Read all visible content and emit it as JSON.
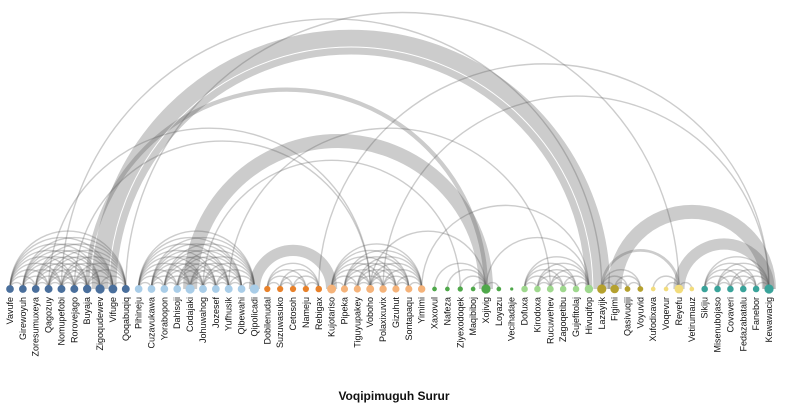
{
  "title": "Voqipimuguh Surur",
  "colors": {
    "link": "#555555",
    "groups": [
      "#4a6f9c",
      "#a9cde8",
      "#e8812a",
      "#f5b37a",
      "#4fa84a",
      "#9fd88e",
      "#b5a12e",
      "#f2dc7c",
      "#3aa39a"
    ]
  },
  "nodes": [
    {
      "label": "Vavufe",
      "group": 0
    },
    {
      "label": "Girewoyuh",
      "group": 0
    },
    {
      "label": "Zoresumuxeya",
      "group": 0
    },
    {
      "label": "Qagozuy",
      "group": 0
    },
    {
      "label": "Nomupefobi",
      "group": 0
    },
    {
      "label": "Rorovejago",
      "group": 0
    },
    {
      "label": "Buyaja",
      "group": 0
    },
    {
      "label": "Zigoqudewev",
      "group": 0
    },
    {
      "label": "Vifuge",
      "group": 0
    },
    {
      "label": "Qoqabuqiq",
      "group": 0
    },
    {
      "label": "Pihineju",
      "group": 1
    },
    {
      "label": "Cuzavukawa",
      "group": 1
    },
    {
      "label": "Yorabopon",
      "group": 1
    },
    {
      "label": "Dahisoji",
      "group": 1
    },
    {
      "label": "Codajaki",
      "group": 1
    },
    {
      "label": "Johuwahog",
      "group": 1
    },
    {
      "label": "Jozesef",
      "group": 1
    },
    {
      "label": "Yufhusik",
      "group": 1
    },
    {
      "label": "Qibewahi",
      "group": 1
    },
    {
      "label": "Qipolicadi",
      "group": 1
    },
    {
      "label": "Dobilenudal",
      "group": 2
    },
    {
      "label": "Suzuwasuko",
      "group": 2
    },
    {
      "label": "Cetosoh",
      "group": 2
    },
    {
      "label": "Nameju",
      "group": 2
    },
    {
      "label": "Rebigax",
      "group": 2
    },
    {
      "label": "Kujotariso",
      "group": 3
    },
    {
      "label": "Pipeka",
      "group": 3
    },
    {
      "label": "Tiguyupakey",
      "group": 3
    },
    {
      "label": "Voboho",
      "group": 3
    },
    {
      "label": "Polaxixuvix",
      "group": 3
    },
    {
      "label": "Gizuhut",
      "group": 3
    },
    {
      "label": "Sontapaqu",
      "group": 3
    },
    {
      "label": "Yimimi",
      "group": 3
    },
    {
      "label": "Xaxovul",
      "group": 4
    },
    {
      "label": "Nafeza",
      "group": 4
    },
    {
      "label": "Ziyexodoqek",
      "group": 4
    },
    {
      "label": "Maqibiboj",
      "group": 4
    },
    {
      "label": "Xojivig",
      "group": 4
    },
    {
      "label": "Loyazu",
      "group": 4
    },
    {
      "label": "Vecihadaje",
      "group": 4
    },
    {
      "label": "Dofuxa",
      "group": 5
    },
    {
      "label": "Kirodoxa",
      "group": 5
    },
    {
      "label": "Rucuwehev",
      "group": 5
    },
    {
      "label": "Zagoqetibu",
      "group": 5
    },
    {
      "label": "Gujefitolaj",
      "group": 5
    },
    {
      "label": "Hivuqifop",
      "group": 5
    },
    {
      "label": "Lazayijk",
      "group": 6
    },
    {
      "label": "Figimi",
      "group": 6
    },
    {
      "label": "Qasivuqiji",
      "group": 6
    },
    {
      "label": "Voyuvid",
      "group": 6
    },
    {
      "label": "Xufodixava",
      "group": 7
    },
    {
      "label": "Voqevur",
      "group": 7
    },
    {
      "label": "Reyefu",
      "group": 7
    },
    {
      "label": "Vetirumauz",
      "group": 7
    },
    {
      "label": "Sikiju",
      "group": 8
    },
    {
      "label": "Misenubojaso",
      "group": 8
    },
    {
      "label": "Covaveri",
      "group": 8
    },
    {
      "label": "Fedazabatalu",
      "group": 8
    },
    {
      "label": "Fanebor",
      "group": 8
    },
    {
      "label": "Kewawacig",
      "group": 8
    }
  ],
  "links": [
    [
      0,
      1,
      1
    ],
    [
      0,
      2,
      1
    ],
    [
      0,
      3,
      1
    ],
    [
      0,
      4,
      1
    ],
    [
      0,
      5,
      1
    ],
    [
      0,
      6,
      1
    ],
    [
      0,
      7,
      1
    ],
    [
      0,
      8,
      1
    ],
    [
      0,
      9,
      1
    ],
    [
      1,
      2,
      1
    ],
    [
      1,
      3,
      1
    ],
    [
      1,
      4,
      1
    ],
    [
      1,
      5,
      1
    ],
    [
      1,
      6,
      1
    ],
    [
      1,
      7,
      1
    ],
    [
      1,
      8,
      1
    ],
    [
      1,
      9,
      1
    ],
    [
      2,
      3,
      1
    ],
    [
      2,
      4,
      1
    ],
    [
      2,
      5,
      1
    ],
    [
      2,
      6,
      1
    ],
    [
      2,
      7,
      1
    ],
    [
      2,
      8,
      1
    ],
    [
      2,
      9,
      1
    ],
    [
      3,
      4,
      1
    ],
    [
      3,
      5,
      1
    ],
    [
      3,
      6,
      1
    ],
    [
      3,
      7,
      1
    ],
    [
      3,
      8,
      1
    ],
    [
      3,
      9,
      1
    ],
    [
      4,
      5,
      1
    ],
    [
      4,
      6,
      1
    ],
    [
      4,
      7,
      1
    ],
    [
      4,
      8,
      1
    ],
    [
      4,
      9,
      1
    ],
    [
      5,
      6,
      1
    ],
    [
      5,
      7,
      1
    ],
    [
      5,
      8,
      1
    ],
    [
      5,
      9,
      1
    ],
    [
      6,
      7,
      1
    ],
    [
      6,
      8,
      1
    ],
    [
      6,
      9,
      1
    ],
    [
      7,
      8,
      1
    ],
    [
      7,
      9,
      1
    ],
    [
      8,
      9,
      1
    ],
    [
      10,
      11,
      1
    ],
    [
      10,
      12,
      1
    ],
    [
      10,
      13,
      1
    ],
    [
      10,
      14,
      1
    ],
    [
      10,
      15,
      1
    ],
    [
      10,
      16,
      1
    ],
    [
      10,
      17,
      1
    ],
    [
      10,
      18,
      1
    ],
    [
      10,
      19,
      1
    ],
    [
      11,
      12,
      1
    ],
    [
      11,
      13,
      1
    ],
    [
      11,
      14,
      1
    ],
    [
      11,
      15,
      1
    ],
    [
      11,
      16,
      1
    ],
    [
      11,
      17,
      1
    ],
    [
      11,
      18,
      1
    ],
    [
      11,
      19,
      1
    ],
    [
      12,
      13,
      1
    ],
    [
      12,
      14,
      1
    ],
    [
      12,
      15,
      1
    ],
    [
      12,
      16,
      1
    ],
    [
      12,
      17,
      1
    ],
    [
      12,
      18,
      1
    ],
    [
      12,
      19,
      1
    ],
    [
      13,
      14,
      1
    ],
    [
      13,
      15,
      1
    ],
    [
      13,
      16,
      1
    ],
    [
      13,
      17,
      1
    ],
    [
      13,
      18,
      1
    ],
    [
      13,
      19,
      1
    ],
    [
      14,
      15,
      1
    ],
    [
      14,
      16,
      1
    ],
    [
      14,
      17,
      1
    ],
    [
      14,
      18,
      1
    ],
    [
      14,
      19,
      1
    ],
    [
      15,
      16,
      1
    ],
    [
      15,
      17,
      1
    ],
    [
      15,
      18,
      1
    ],
    [
      15,
      19,
      1
    ],
    [
      16,
      17,
      1
    ],
    [
      16,
      18,
      1
    ],
    [
      16,
      19,
      1
    ],
    [
      17,
      18,
      1
    ],
    [
      17,
      19,
      1
    ],
    [
      18,
      19,
      1
    ],
    [
      20,
      21,
      1
    ],
    [
      20,
      22,
      1
    ],
    [
      20,
      23,
      1
    ],
    [
      20,
      24,
      1
    ],
    [
      21,
      22,
      1
    ],
    [
      21,
      23,
      1
    ],
    [
      21,
      24,
      1
    ],
    [
      22,
      23,
      1
    ],
    [
      22,
      24,
      1
    ],
    [
      23,
      24,
      1
    ],
    [
      19,
      25,
      8
    ],
    [
      25,
      26,
      1
    ],
    [
      25,
      27,
      1
    ],
    [
      25,
      28,
      1
    ],
    [
      25,
      29,
      1
    ],
    [
      25,
      30,
      1
    ],
    [
      25,
      31,
      1
    ],
    [
      25,
      32,
      1
    ],
    [
      26,
      27,
      1
    ],
    [
      26,
      28,
      1
    ],
    [
      26,
      29,
      1
    ],
    [
      26,
      30,
      1
    ],
    [
      26,
      31,
      1
    ],
    [
      26,
      32,
      1
    ],
    [
      27,
      28,
      1
    ],
    [
      27,
      29,
      1
    ],
    [
      27,
      30,
      1
    ],
    [
      27,
      31,
      1
    ],
    [
      27,
      32,
      1
    ],
    [
      28,
      29,
      1
    ],
    [
      28,
      30,
      1
    ],
    [
      28,
      31,
      1
    ],
    [
      28,
      32,
      1
    ],
    [
      29,
      30,
      1
    ],
    [
      29,
      31,
      1
    ],
    [
      29,
      32,
      1
    ],
    [
      30,
      31,
      1
    ],
    [
      30,
      32,
      1
    ],
    [
      31,
      32,
      1
    ],
    [
      33,
      37,
      1
    ],
    [
      34,
      37,
      1
    ],
    [
      35,
      37,
      1
    ],
    [
      36,
      37,
      1
    ],
    [
      37,
      38,
      1
    ],
    [
      40,
      41,
      1
    ],
    [
      40,
      42,
      1
    ],
    [
      40,
      43,
      1
    ],
    [
      40,
      44,
      1
    ],
    [
      40,
      45,
      1
    ],
    [
      41,
      42,
      1
    ],
    [
      41,
      43,
      1
    ],
    [
      41,
      44,
      1
    ],
    [
      41,
      45,
      1
    ],
    [
      42,
      43,
      1
    ],
    [
      42,
      44,
      1
    ],
    [
      42,
      45,
      1
    ],
    [
      43,
      44,
      1
    ],
    [
      43,
      45,
      1
    ],
    [
      44,
      45,
      1
    ],
    [
      46,
      47,
      1
    ],
    [
      46,
      48,
      1
    ],
    [
      46,
      49,
      1
    ],
    [
      47,
      48,
      1
    ],
    [
      47,
      49,
      1
    ],
    [
      48,
      49,
      1
    ],
    [
      51,
      52,
      1
    ],
    [
      52,
      53,
      1
    ],
    [
      50,
      52,
      1
    ],
    [
      54,
      55,
      1
    ],
    [
      54,
      56,
      1
    ],
    [
      54,
      57,
      1
    ],
    [
      54,
      58,
      1
    ],
    [
      54,
      59,
      1
    ],
    [
      55,
      56,
      1
    ],
    [
      55,
      57,
      1
    ],
    [
      55,
      58,
      1
    ],
    [
      55,
      59,
      1
    ],
    [
      56,
      57,
      1
    ],
    [
      56,
      58,
      1
    ],
    [
      56,
      59,
      1
    ],
    [
      57,
      58,
      1
    ],
    [
      57,
      59,
      1
    ],
    [
      58,
      59,
      1
    ],
    [
      7,
      46,
      12
    ],
    [
      8,
      45,
      5
    ],
    [
      6,
      37,
      3
    ],
    [
      9,
      52,
      1
    ],
    [
      4,
      46,
      1
    ],
    [
      5,
      28,
      1
    ],
    [
      3,
      28,
      1
    ],
    [
      14,
      37,
      10
    ],
    [
      15,
      35,
      1
    ],
    [
      17,
      42,
      1
    ],
    [
      24,
      59,
      1
    ],
    [
      28,
      37,
      1
    ],
    [
      29,
      59,
      1
    ],
    [
      32,
      45,
      1
    ],
    [
      37,
      45,
      1
    ],
    [
      47,
      59,
      10
    ],
    [
      52,
      59,
      8
    ],
    [
      46,
      52,
      2
    ]
  ]
}
